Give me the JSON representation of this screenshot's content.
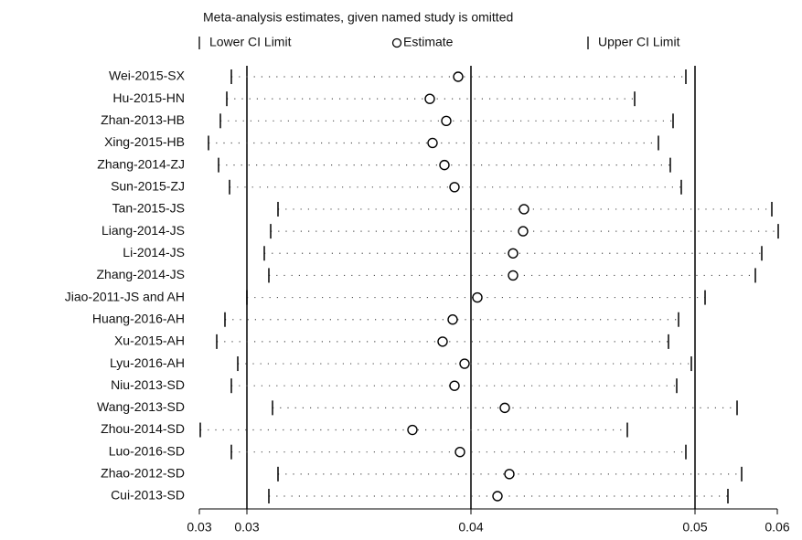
{
  "chart_data": {
    "type": "influence",
    "title": "Meta-analysis estimates, given named study is omitted",
    "categories": [
      "Wei-2015-SX",
      "Hu-2015-HN",
      "Zhan-2013-HB",
      "Xing-2015-HB",
      "Zhang-2014-ZJ",
      "Sun-2015-ZJ",
      "Tan-2015-JS",
      "Liang-2014-JS",
      "Li-2014-JS",
      "Zhang-2014-JS",
      "Jiao-2011-JS and AH",
      "Huang-2016-AH",
      "Xu-2015-AH",
      "Lyu-2016-AH",
      "Niu-2013-SD",
      "Wang-2013-SD",
      "Zhou-2014-SD",
      "Luo-2016-SD",
      "Zhao-2012-SD",
      "Cui-2013-SD"
    ],
    "series": [
      {
        "name": "Lower CI Limit",
        "color": "#000000",
        "values": [
          0.0269,
          0.02665,
          0.0263,
          0.02565,
          0.0262,
          0.0268,
          0.02945,
          0.02905,
          0.0287,
          0.02895,
          0.02775,
          0.02655,
          0.0261,
          0.02725,
          0.0269,
          0.02915,
          0.0252,
          0.0269,
          0.02945,
          0.02895
        ]
      },
      {
        "name": "Estimate",
        "color": "#000000",
        "values": [
          0.0393,
          0.03775,
          0.03865,
          0.0379,
          0.03855,
          0.0391,
          0.0429,
          0.04285,
          0.0423,
          0.0423,
          0.04035,
          0.039,
          0.03845,
          0.03965,
          0.0391,
          0.04185,
          0.0368,
          0.0394,
          0.0421,
          0.04145
        ]
      },
      {
        "name": "Upper CI Limit",
        "color": "#000000",
        "values": [
          0.05175,
          0.04895,
          0.05105,
          0.05025,
          0.0509,
          0.0515,
          0.05645,
          0.0568,
          0.0559,
          0.05555,
          0.0528,
          0.05135,
          0.0508,
          0.05205,
          0.05125,
          0.05455,
          0.04855,
          0.05175,
          0.0548,
          0.05405
        ]
      }
    ],
    "reference_lines": [
      0.02775,
      0.04,
      0.05225
    ],
    "xlim": [
      0.02515,
      0.05675
    ],
    "xticks": [
      {
        "value": 0.02515,
        "label": "0.03"
      },
      {
        "value": 0.02775,
        "label": "0.03"
      },
      {
        "value": 0.04,
        "label": "0.04"
      },
      {
        "value": 0.05225,
        "label": "0.05"
      },
      {
        "value": 0.05675,
        "label": "0.06"
      }
    ]
  }
}
